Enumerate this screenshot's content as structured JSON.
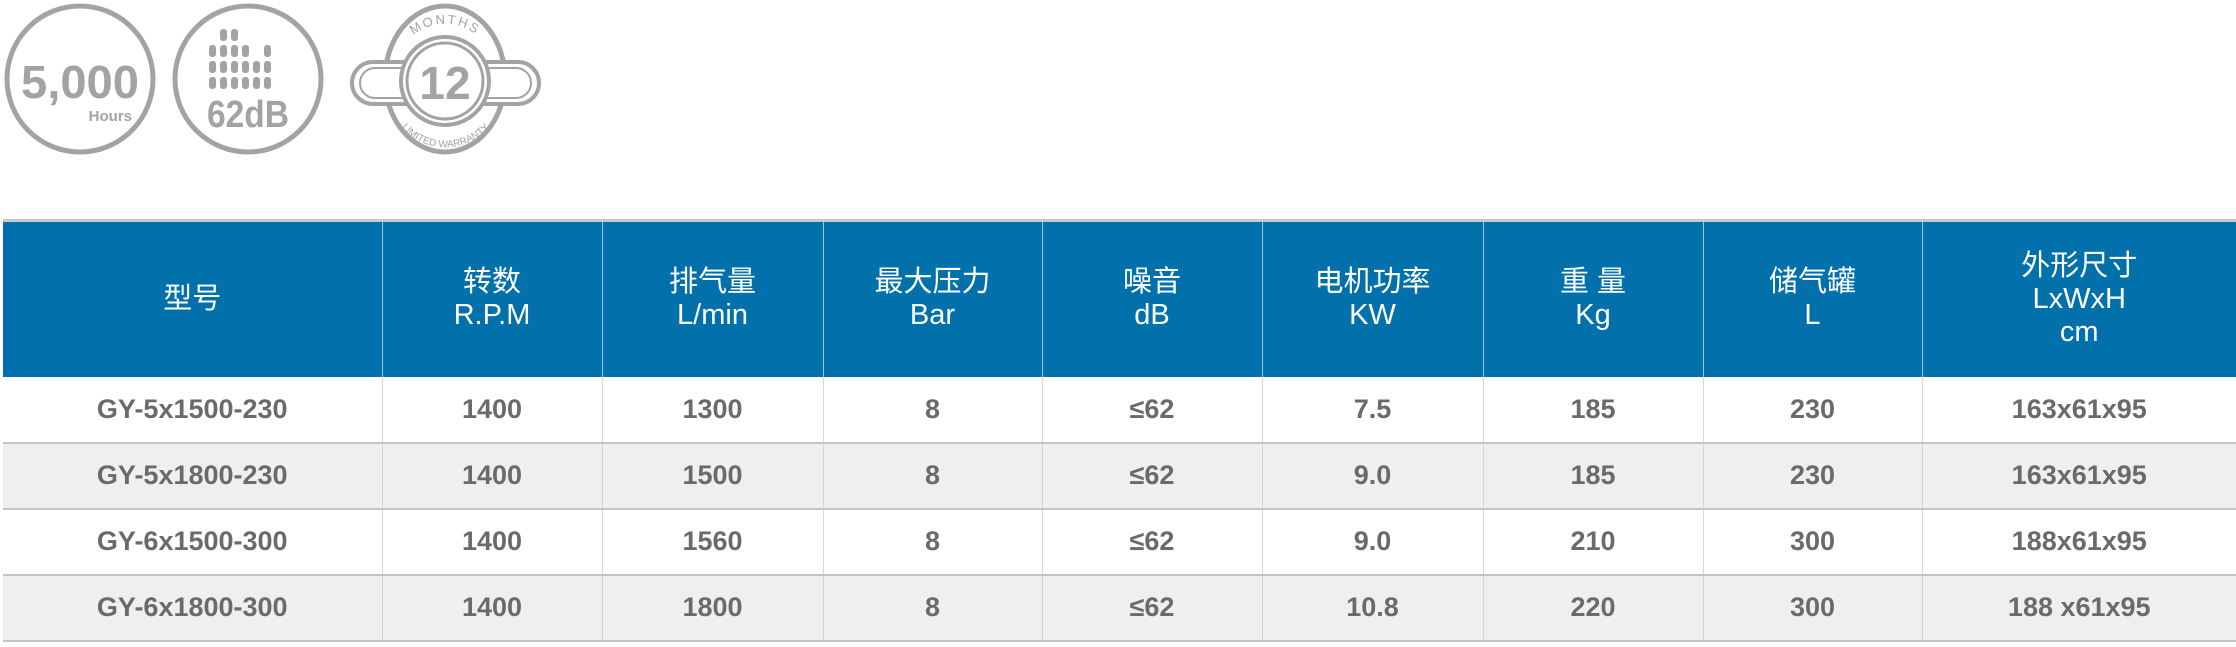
{
  "badges": {
    "hours": {
      "value": "5,000",
      "unit": "Hours"
    },
    "noise": {
      "value": "62dB"
    },
    "warranty": {
      "top": "MONTHS",
      "value": "12",
      "bottom": "LIMITED WARRANTY"
    }
  },
  "colors": {
    "header_bg": "#0270ab",
    "badge_gray": "#a3a3a3",
    "row_alt": "#efefef",
    "text": "#6a6a6a"
  },
  "table": {
    "headers": [
      {
        "zh": "型号",
        "en": ""
      },
      {
        "zh": "转数",
        "en": "R.P.M"
      },
      {
        "zh": "排气量",
        "en": "L/min"
      },
      {
        "zh": "最大压力",
        "en": "Bar"
      },
      {
        "zh": "噪音",
        "en": "dB"
      },
      {
        "zh": "电机功率",
        "en": "KW"
      },
      {
        "zh": "重 量",
        "en": "Kg"
      },
      {
        "zh": "储气罐",
        "en": "L"
      },
      {
        "zh": "外形尺寸",
        "en": "LxWxH",
        "en2": "cm"
      }
    ],
    "rows": [
      [
        "GY-5x1500-230",
        "1400",
        "1300",
        "8",
        "≤62",
        "7.5",
        "185",
        "230",
        "163x61x95"
      ],
      [
        "GY-5x1800-230",
        "1400",
        "1500",
        "8",
        "≤62",
        "9.0",
        "185",
        "230",
        "163x61x95"
      ],
      [
        "GY-6x1500-300",
        "1400",
        "1560",
        "8",
        "≤62",
        "9.0",
        "210",
        "300",
        "188x61x95"
      ],
      [
        "GY-6x1800-300",
        "1400",
        "1800",
        "8",
        "≤62",
        "10.8",
        "220",
        "300",
        "188 x61x95"
      ]
    ]
  }
}
